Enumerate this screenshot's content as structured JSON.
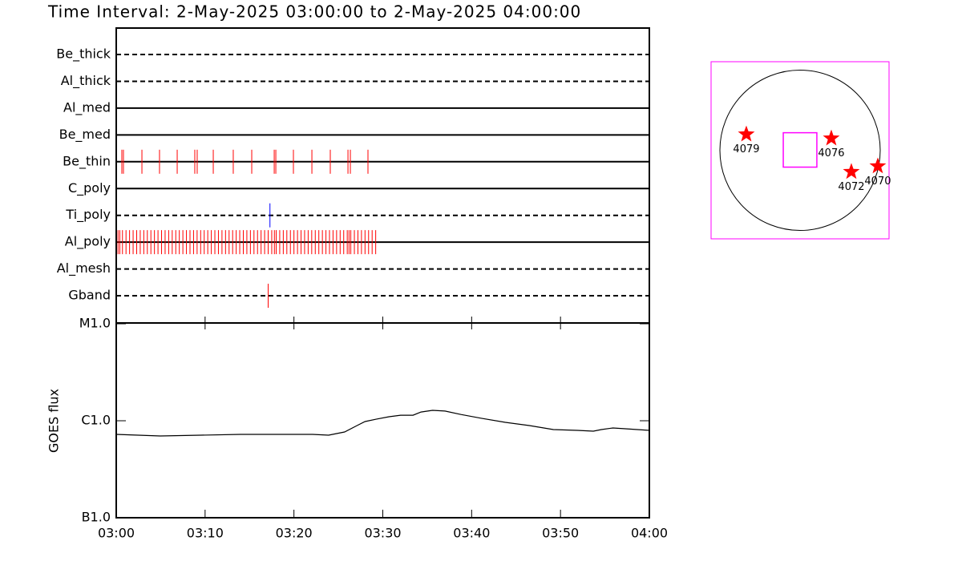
{
  "chart_data": [
    {
      "type": "timeline",
      "title": "Time Interval:  2-May-2025 03:00:00 to  2-May-2025 04:00:00",
      "categories": [
        "Be_thick",
        "Al_thick",
        "Al_med",
        "Be_med",
        "Be_thin",
        "C_poly",
        "Ti_poly",
        "Al_poly",
        "Al_mesh",
        "Gband"
      ],
      "line_styles": [
        "dashed",
        "dashed",
        "solid",
        "solid",
        "solid",
        "solid",
        "dashed",
        "solid",
        "dashed",
        "dashed"
      ],
      "colors": [
        "#ff0000",
        "#ff0000",
        "#ff0000",
        "#ff0000",
        "#ff0000",
        "#ff0000",
        "#0000ff",
        "#ff0000",
        "#ff0000",
        "#ff0000"
      ],
      "event_times": [
        [],
        [],
        [],
        [],
        [
          0.63,
          0.81,
          2.89,
          4.87,
          6.86,
          8.84,
          9.11,
          10.92,
          13.17,
          15.25,
          17.78,
          17.96,
          19.94,
          22.02,
          24.09,
          26.08,
          26.35,
          28.33
        ],
        [],
        [
          17.3
        ],
        [
          0.2,
          0.4,
          0.7,
          1.1,
          1.5,
          1.9,
          2.3,
          2.7,
          3.1,
          3.5,
          3.9,
          4.3,
          4.7,
          5.1,
          5.5,
          5.9,
          6.3,
          6.7,
          7.1,
          7.5,
          7.9,
          8.3,
          8.7,
          9.1,
          9.5,
          9.9,
          10.3,
          10.7,
          11.1,
          11.5,
          11.9,
          12.3,
          12.7,
          13.1,
          13.5,
          13.9,
          14.3,
          14.7,
          15.1,
          15.5,
          15.9,
          16.3,
          16.7,
          17.1,
          17.5,
          17.8,
          18.0,
          18.4,
          18.8,
          19.2,
          19.6,
          20.0,
          20.4,
          20.8,
          21.2,
          21.6,
          22.0,
          22.4,
          22.8,
          23.2,
          23.6,
          24.0,
          24.4,
          24.8,
          25.2,
          25.6,
          26.0,
          26.2,
          26.4,
          26.8,
          27.2,
          27.6,
          28.0,
          28.4,
          28.8,
          29.2
        ],
        [],
        [
          17.1
        ]
      ],
      "xlim": [
        0,
        60
      ]
    },
    {
      "type": "line",
      "ylabel": "GOES flux",
      "log_scale": true,
      "color": "#000000",
      "x": [
        0,
        4.96,
        9.47,
        13.99,
        18.5,
        22.1,
        23.9,
        25.7,
        27.1,
        28.0,
        29.3,
        30.7,
        32.0,
        33.4,
        34.3,
        35.6,
        37.0,
        38.8,
        41.1,
        43.8,
        46.5,
        49.2,
        51.9,
        53.7,
        54.6,
        55.9,
        57.3,
        60
      ],
      "values": [
        7.24e-07,
        6.97e-07,
        7.1e-07,
        7.24e-07,
        7.24e-07,
        7.24e-07,
        7.1e-07,
        7.66e-07,
        8.92e-07,
        9.81e-07,
        1.04e-06,
        1.1e-06,
        1.14e-06,
        1.14e-06,
        1.23e-06,
        1.28e-06,
        1.26e-06,
        1.16e-06,
        1.06e-06,
        9.63e-07,
        8.92e-07,
        8.11e-07,
        7.96e-07,
        7.81e-07,
        8.11e-07,
        8.43e-07,
        8.27e-07,
        7.96e-07
      ],
      "ylim": [
        1e-07,
        1e-05
      ],
      "yticks": [
        {
          "value": 1e-07,
          "label": "B1.0"
        },
        {
          "value": 1e-06,
          "label": "C1.0"
        },
        {
          "value": 1e-05,
          "label": "M1.0"
        }
      ],
      "xlim": [
        0,
        60
      ],
      "xticks": [
        {
          "value": 0,
          "label": "03:00"
        },
        {
          "value": 10,
          "label": "03:10"
        },
        {
          "value": 20,
          "label": "03:20"
        },
        {
          "value": 30,
          "label": "03:30"
        },
        {
          "value": 40,
          "label": "03:40"
        },
        {
          "value": 50,
          "label": "03:50"
        },
        {
          "value": 60,
          "label": "04:00"
        }
      ]
    },
    {
      "type": "map",
      "xlim": [
        -1060,
        1060
      ],
      "ylim": [
        -1060,
        1060
      ],
      "solar_radius": 955,
      "fov": {
        "x": 0,
        "y": 5,
        "width": 400,
        "height": 410,
        "color": "#ff00ff"
      },
      "star_color": "#ff0000",
      "regions": [
        {
          "label": "4079",
          "x": -640,
          "y": 191
        },
        {
          "label": "4076",
          "x": 372,
          "y": 143
        },
        {
          "label": "4072",
          "x": 611,
          "y": -258
        },
        {
          "label": "4070",
          "x": 926,
          "y": -191
        }
      ]
    }
  ]
}
